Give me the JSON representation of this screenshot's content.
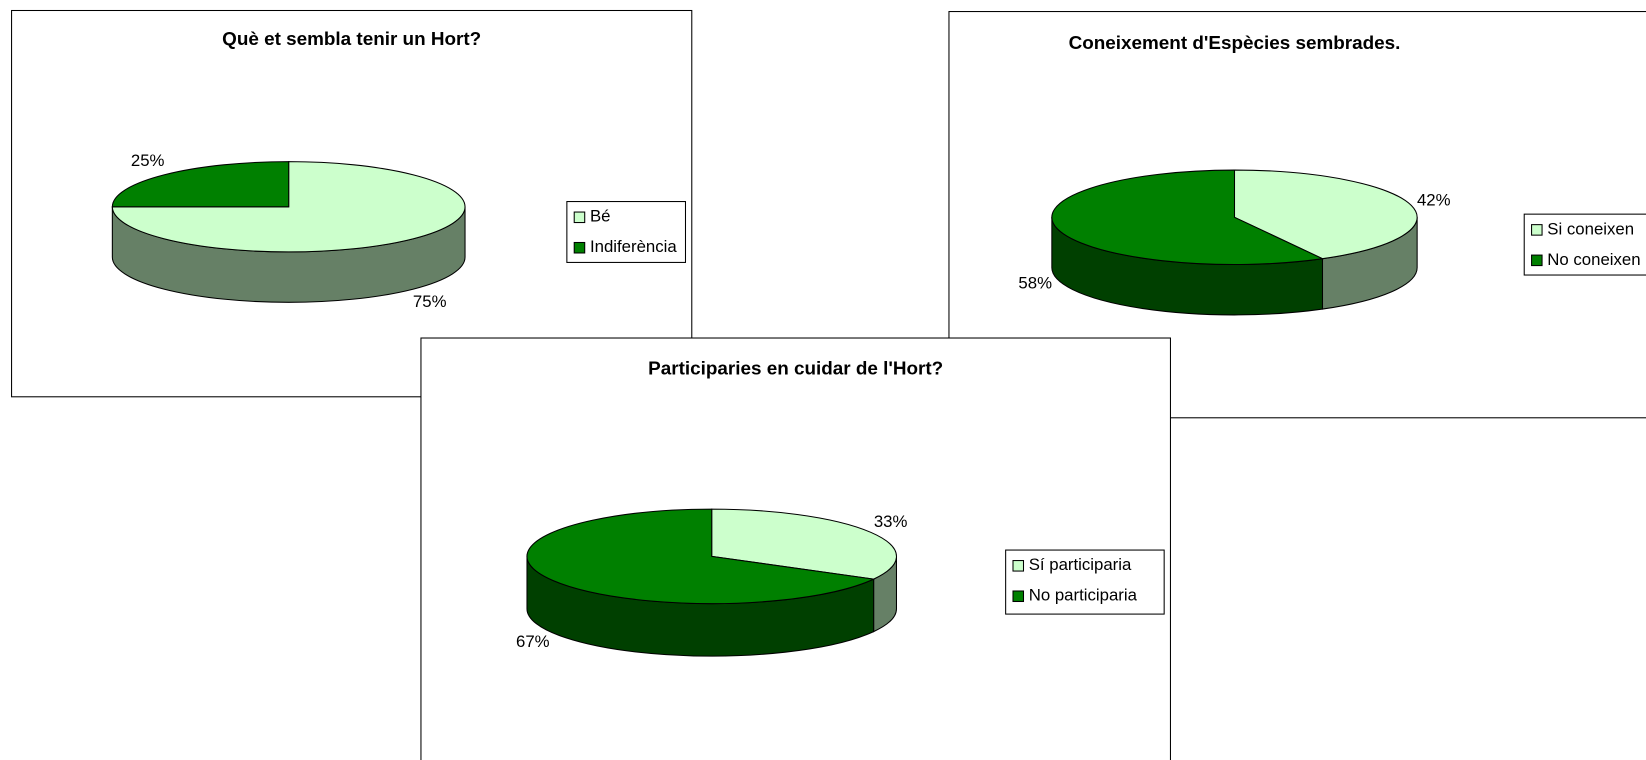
{
  "chart_data": [
    {
      "type": "pie",
      "title": "Què et sembla tenir un Hort?",
      "categories": [
        "Bé",
        "Indiferència"
      ],
      "values": [
        75,
        25
      ],
      "value_labels": [
        "75%",
        "25%"
      ],
      "colors": [
        "#ccffcc",
        "#008000"
      ],
      "legend": "right"
    },
    {
      "type": "pie",
      "title": "Coneixement d'Espècies sembrades.",
      "categories": [
        "Si coneixen",
        "No coneixen"
      ],
      "values": [
        42,
        58
      ],
      "value_labels": [
        "42%",
        "58%"
      ],
      "colors": [
        "#ccffcc",
        "#008000"
      ],
      "legend": "right"
    },
    {
      "type": "pie",
      "title": "Participaries en cuidar de l'Hort?",
      "categories": [
        "Sí participaria",
        "No participaria"
      ],
      "values": [
        33,
        67
      ],
      "value_labels": [
        "33%",
        "67%"
      ],
      "colors": [
        "#ccffcc",
        "#008000"
      ],
      "legend": "right"
    }
  ]
}
